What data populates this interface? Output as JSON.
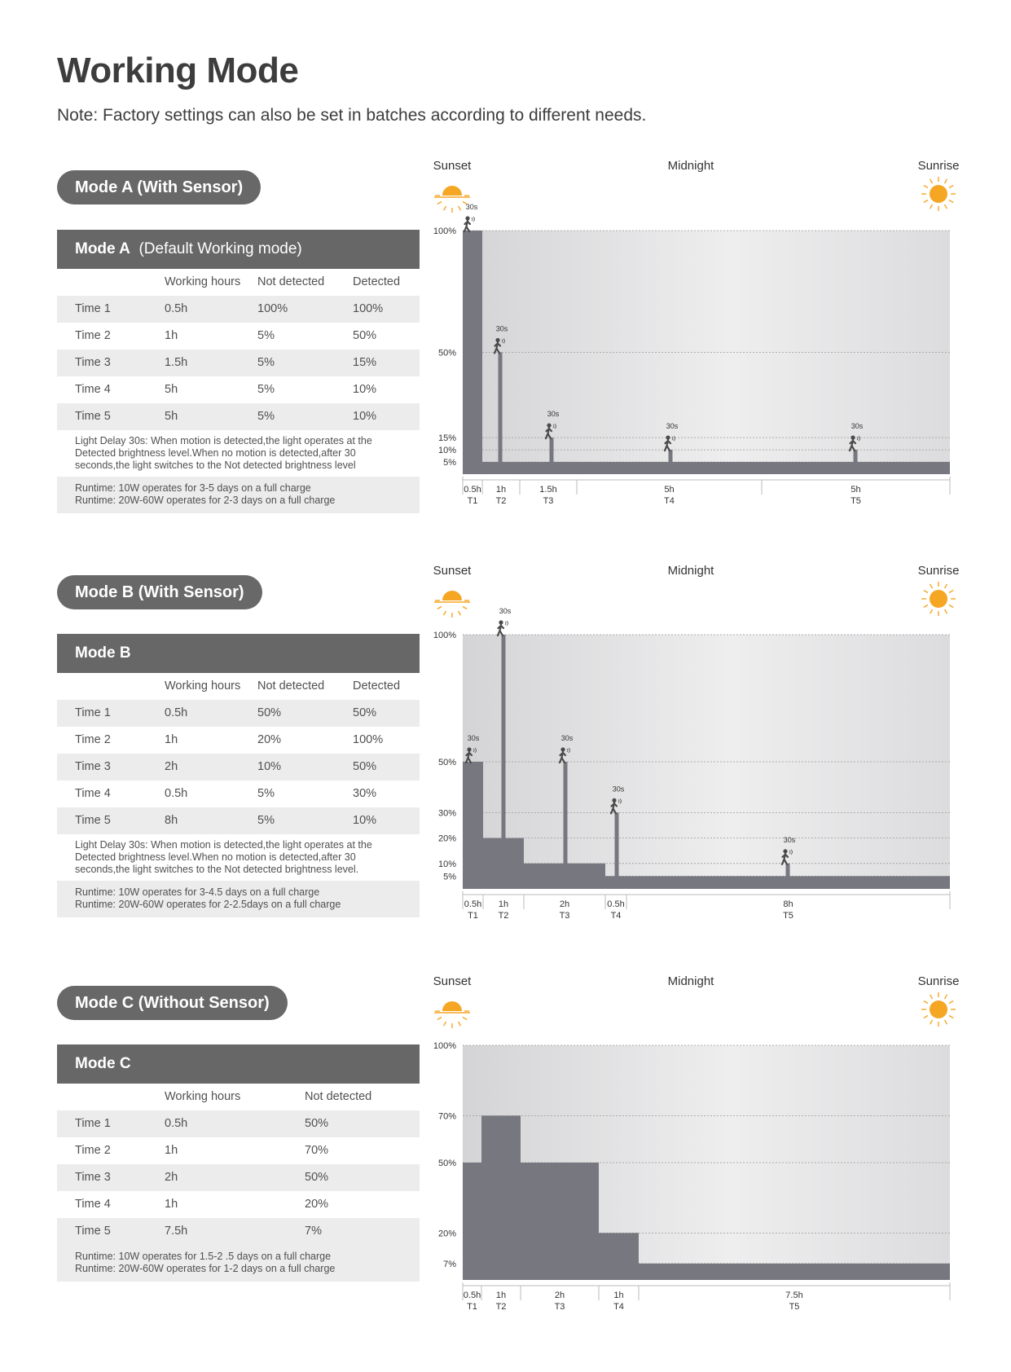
{
  "page": {
    "title": "Working Mode",
    "note": "Note: Factory settings can also be set in batches according to different needs."
  },
  "colors": {
    "bar": "#77777f",
    "table_header": "#676767",
    "sun": "#f5a623",
    "moon": "#f2c42c"
  },
  "labels": {
    "sunset": "Sunset",
    "midnight": "Midnight",
    "sunrise": "Sunrise",
    "delay": "30s"
  },
  "modes": [
    {
      "pill": "Mode A (With Sensor)",
      "header_bold": "Mode A",
      "header_rest": "(Default Working mode)",
      "columns": [
        "",
        "Working hours",
        "Not detected",
        "Detected"
      ],
      "rows": [
        [
          "Time 1",
          "0.5h",
          "100%",
          "100%"
        ],
        [
          "Time 2",
          "1h",
          "5%",
          "50%"
        ],
        [
          "Time 3",
          "1.5h",
          "5%",
          "15%"
        ],
        [
          "Time 4",
          "5h",
          "5%",
          "10%"
        ],
        [
          "Time 5",
          "5h",
          "5%",
          "10%"
        ]
      ],
      "delay_note": [
        "Light Delay 30s: When motion is detected,the light operates at the",
        "Detected brightness level.When no motion is detected,after 30",
        "seconds,the light switches to the Not detected brightness level"
      ],
      "runtime": [
        "Runtime: 10W operates for 3-5 days on a full charge",
        "Runtime: 20W-60W operates for 2-3 days on a full charge"
      ]
    },
    {
      "pill": "Mode B (With Sensor)",
      "header_bold": "Mode B",
      "header_rest": "",
      "columns": [
        "",
        "Working hours",
        "Not detected",
        "Detected"
      ],
      "rows": [
        [
          "Time 1",
          "0.5h",
          "50%",
          "50%"
        ],
        [
          "Time 2",
          "1h",
          "20%",
          "100%"
        ],
        [
          "Time 3",
          "2h",
          "10%",
          "50%"
        ],
        [
          "Time 4",
          "0.5h",
          "5%",
          "30%"
        ],
        [
          "Time 5",
          "8h",
          "5%",
          "10%"
        ]
      ],
      "delay_note": [
        "Light Delay 30s: When motion is detected,the light operates at the",
        "Detected brightness level.When no motion is detected,after 30",
        "seconds,the light switches to the Not detected brightness level."
      ],
      "runtime": [
        "Runtime: 10W operates for 3-4.5 days on a full charge",
        "Runtime: 20W-60W operates for 2-2.5days on a full charge"
      ]
    },
    {
      "pill": "Mode C (Without Sensor)",
      "header_bold": "Mode C",
      "header_rest": "",
      "columns": [
        "",
        "Working hours",
        "Not detected"
      ],
      "rows": [
        [
          "Time 1",
          "0.5h",
          "50%"
        ],
        [
          "Time 2",
          "1h",
          "70%"
        ],
        [
          "Time 3",
          "2h",
          "50%"
        ],
        [
          "Time 4",
          "1h",
          "20%"
        ],
        [
          "Time 5",
          "7.5h",
          "7%"
        ]
      ],
      "delay_note": [],
      "runtime": [
        "Runtime: 10W operates for 1.5-2 .5 days on a full charge",
        "Runtime: 20W-60W operates for 1-2 days on a full charge"
      ]
    }
  ],
  "chart_data": [
    {
      "type": "area",
      "segments": [
        {
          "period": "T1",
          "duration": "0.5h",
          "base": 100,
          "peak": 100
        },
        {
          "period": "T2",
          "duration": "1h",
          "base": 5,
          "peak": 50
        },
        {
          "period": "T3",
          "duration": "1.5h",
          "base": 5,
          "peak": 15
        },
        {
          "period": "T4",
          "duration": "5h",
          "base": 5,
          "peak": 10
        },
        {
          "period": "T5",
          "duration": "5h",
          "base": 5,
          "peak": 10
        }
      ],
      "y_ticks": [
        "100%",
        "50%",
        "15%",
        "10%",
        "5%"
      ],
      "ylim": [
        0,
        100
      ]
    },
    {
      "type": "area",
      "segments": [
        {
          "period": "T1",
          "duration": "0.5h",
          "base": 50,
          "peak": 50
        },
        {
          "period": "T2",
          "duration": "1h",
          "base": 20,
          "peak": 100
        },
        {
          "period": "T3",
          "duration": "2h",
          "base": 10,
          "peak": 50
        },
        {
          "period": "T4",
          "duration": "0.5h",
          "base": 5,
          "peak": 30
        },
        {
          "period": "T5",
          "duration": "8h",
          "base": 5,
          "peak": 10
        }
      ],
      "y_ticks": [
        "100%",
        "50%",
        "30%",
        "20%",
        "10%",
        "5%"
      ],
      "ylim": [
        0,
        100
      ]
    },
    {
      "type": "area",
      "segments": [
        {
          "period": "T1",
          "duration": "0.5h",
          "base": 50
        },
        {
          "period": "T2",
          "duration": "1h",
          "base": 70
        },
        {
          "period": "T3",
          "duration": "2h",
          "base": 50
        },
        {
          "period": "T4",
          "duration": "1h",
          "base": 20
        },
        {
          "period": "T5",
          "duration": "7.5h",
          "base": 7
        }
      ],
      "y_ticks": [
        "100%",
        "70%",
        "50%",
        "20%",
        "7%"
      ],
      "ylim": [
        0,
        100
      ]
    }
  ]
}
